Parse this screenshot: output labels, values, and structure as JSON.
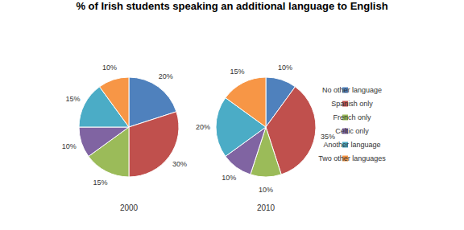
{
  "chart_data": {
    "type": "pie",
    "title": "% of Irish students speaking an additional language to English",
    "categories": [
      "No other language",
      "Spanish only",
      "French only",
      "Celtic only",
      "Another language",
      "Two other languages"
    ],
    "colors": [
      "#4f81bd",
      "#c0504d",
      "#9bbb59",
      "#8064a2",
      "#4bacc6",
      "#f79646"
    ],
    "series": [
      {
        "name": "2000",
        "values": [
          20,
          30,
          15,
          10,
          15,
          10
        ],
        "value_labels": [
          "20%",
          "30%",
          "15%",
          "10%",
          "15%",
          "10%"
        ]
      },
      {
        "name": "2010",
        "values": [
          10,
          35,
          10,
          10,
          20,
          15
        ],
        "value_labels": [
          "10%",
          "35%",
          "10%",
          "10%",
          "20%",
          "15%"
        ]
      }
    ],
    "data_labels": true,
    "legend": "right"
  }
}
